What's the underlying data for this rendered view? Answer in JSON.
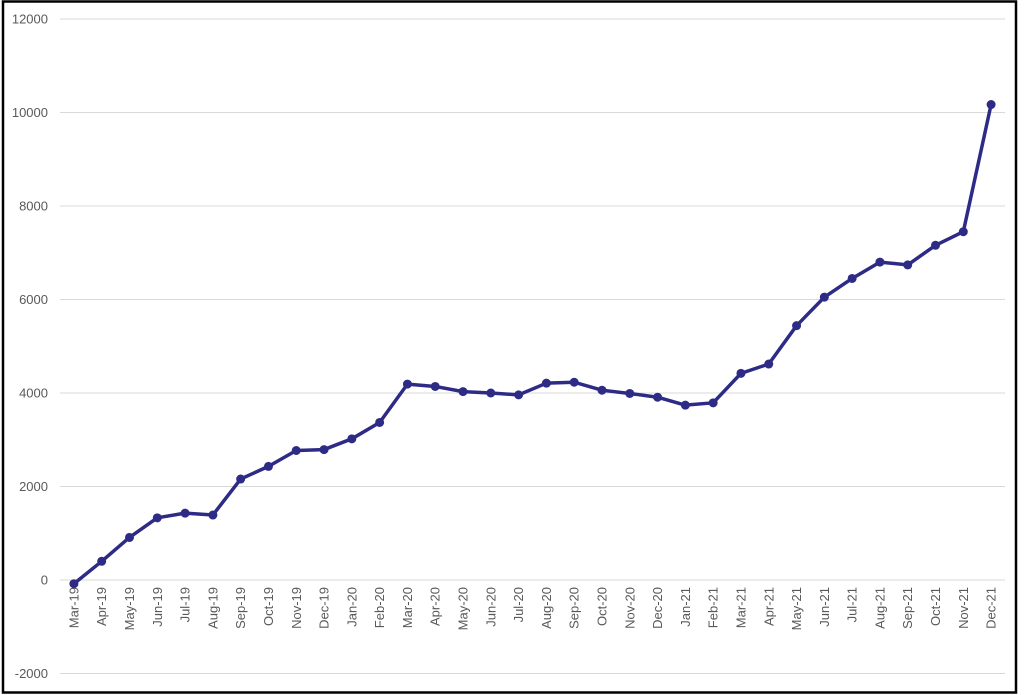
{
  "chart_data": {
    "type": "line",
    "title": "",
    "xlabel": "",
    "ylabel": "",
    "categories": [
      "Mar-19",
      "Apr-19",
      "May-19",
      "Jun-19",
      "Jul-19",
      "Aug-19",
      "Sep-19",
      "Oct-19",
      "Nov-19",
      "Dec-19",
      "Jan-20",
      "Feb-20",
      "Mar-20",
      "Apr-20",
      "May-20",
      "Jun-20",
      "Jul-20",
      "Aug-20",
      "Sep-20",
      "Oct-20",
      "Nov-20",
      "Dec-20",
      "Jan-21",
      "Feb-21",
      "Mar-21",
      "Apr-21",
      "May-21",
      "Jun-21",
      "Jul-21",
      "Aug-21",
      "Sep-21",
      "Oct-21",
      "Nov-21",
      "Dec-21"
    ],
    "values": [
      -80,
      400,
      910,
      1330,
      1430,
      1390,
      2160,
      2430,
      2770,
      2790,
      3020,
      3370,
      4190,
      4140,
      4030,
      4000,
      3960,
      4210,
      4230,
      4060,
      3990,
      3910,
      3740,
      3790,
      4420,
      4620,
      5440,
      6050,
      6450,
      6800,
      6740,
      7160,
      7450,
      10170
    ],
    "ylim": [
      -2000,
      12000
    ],
    "ytick_step": 2000,
    "yticks": [
      12000,
      10000,
      8000,
      6000,
      4000,
      2000,
      0,
      -2000
    ],
    "grid": true,
    "legend": "none",
    "marker": "circle",
    "x_label_rotation_deg": -90,
    "colors": {
      "line": "#2e2b87",
      "marker": "#2e2b87",
      "gridline": "#d9d9d9",
      "axis_label": "#595959",
      "border": "#000000",
      "background": "#ffffff"
    }
  }
}
